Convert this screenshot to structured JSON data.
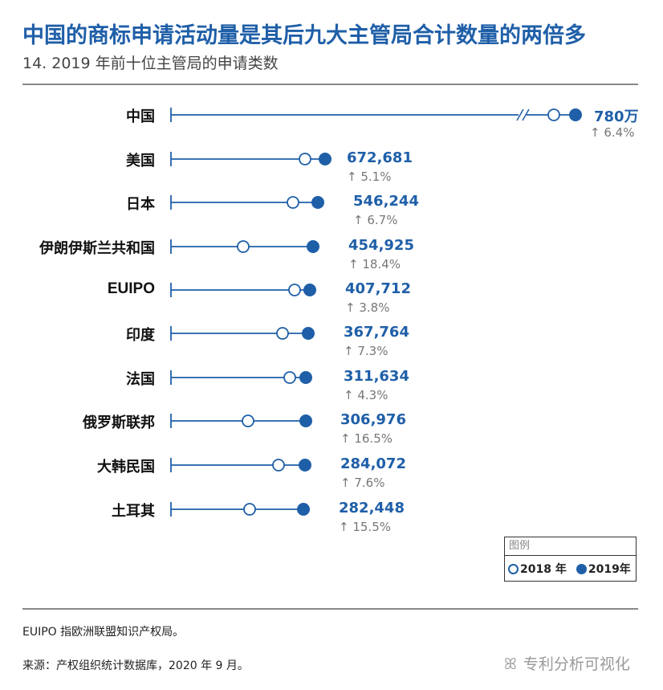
{
  "title": "中国的商标申请活动量是其后九大主管局合计数量的两倍多",
  "subtitle": "14. 2019 年前十位主管局的申请类数",
  "colors": {
    "accent": "#1f5fa8",
    "text": "#111111",
    "muted": "#777777"
  },
  "chart_data": {
    "type": "dot",
    "series": [
      {
        "name": "2018 年",
        "style": "hollow"
      },
      {
        "name": "2019年",
        "style": "filled"
      }
    ],
    "categories": [
      "中国",
      "美国",
      "日本",
      "伊朗伊斯兰共和国",
      "EUIPO",
      "印度",
      "法国",
      "俄罗斯联邦",
      "大韩民国",
      "土耳其"
    ],
    "values_2019_labels": [
      "780万",
      "672,681",
      "546,244",
      "454,925",
      "407,712",
      "367,764",
      "311,634",
      "306,976",
      "284,072",
      "282,448"
    ],
    "values_2019": [
      7800000,
      672681,
      546244,
      454925,
      407712,
      367764,
      311634,
      306976,
      284072,
      282448
    ],
    "growth_labels": [
      "↑ 6.4%",
      "↑ 5.1%",
      "↑ 6.7%",
      "↑ 18.4%",
      "↑ 3.8%",
      "↑ 7.3%",
      "↑ 4.3%",
      "↑ 16.5%",
      "↑ 7.6%",
      "↑ 15.5%"
    ],
    "growth_pct": [
      6.4,
      5.1,
      6.7,
      18.4,
      3.8,
      7.3,
      4.3,
      16.5,
      7.6,
      15.5
    ],
    "axis_break": "中国",
    "legend": {
      "title": "图例",
      "placement": "bottom-right",
      "items": [
        "2018 年",
        "2019年"
      ]
    }
  },
  "footnotes": [
    "EUIPO 指欧洲联盟知识产权局。",
    "来源：产权组织统计数据库，2020 年 9 月。"
  ],
  "watermark": "专利分析可视化"
}
